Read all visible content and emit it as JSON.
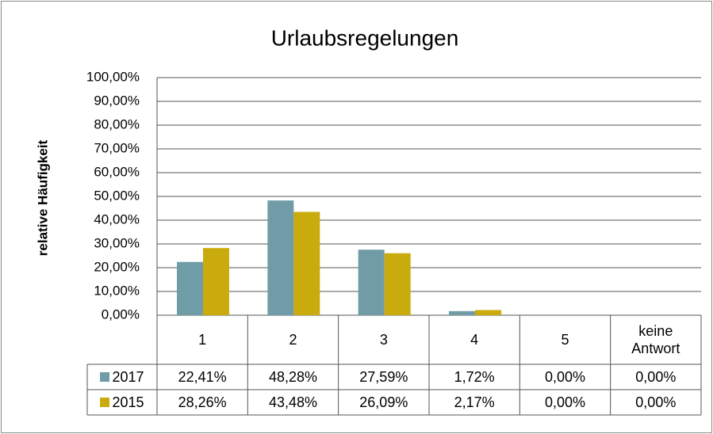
{
  "chart_data": {
    "type": "bar",
    "title": "Urlaubsregelungen",
    "y_label": "relative Häufigkeit",
    "categories": [
      "1",
      "2",
      "3",
      "4",
      "5",
      "keine Antwort"
    ],
    "series": [
      {
        "name": "2017",
        "color": "#709ca7",
        "values": [
          22.41,
          48.28,
          27.59,
          1.72,
          0,
          0
        ],
        "value_labels": [
          "22,41%",
          "48,28%",
          "27,59%",
          "1,72%",
          "0,00%",
          "0,00%"
        ]
      },
      {
        "name": "2015",
        "color": "#c9ab0e",
        "values": [
          28.26,
          43.48,
          26.09,
          2.17,
          0,
          0
        ],
        "value_labels": [
          "28,26%",
          "43,48%",
          "26,09%",
          "2,17%",
          "0,00%",
          "0,00%"
        ]
      }
    ],
    "ylim": [
      0,
      100
    ],
    "yticks": [
      {
        "value": 0,
        "label": "0,00%"
      },
      {
        "value": 10,
        "label": "10,00%"
      },
      {
        "value": 20,
        "label": "20,00%"
      },
      {
        "value": 30,
        "label": "30,00%"
      },
      {
        "value": 40,
        "label": "40,00%"
      },
      {
        "value": 50,
        "label": "50,00%"
      },
      {
        "value": 60,
        "label": "60,00%"
      },
      {
        "value": 70,
        "label": "70,00%"
      },
      {
        "value": 80,
        "label": "80,00%"
      },
      {
        "value": 90,
        "label": "90,00%"
      },
      {
        "value": 100,
        "label": "100,00%"
      }
    ],
    "grid": true
  }
}
